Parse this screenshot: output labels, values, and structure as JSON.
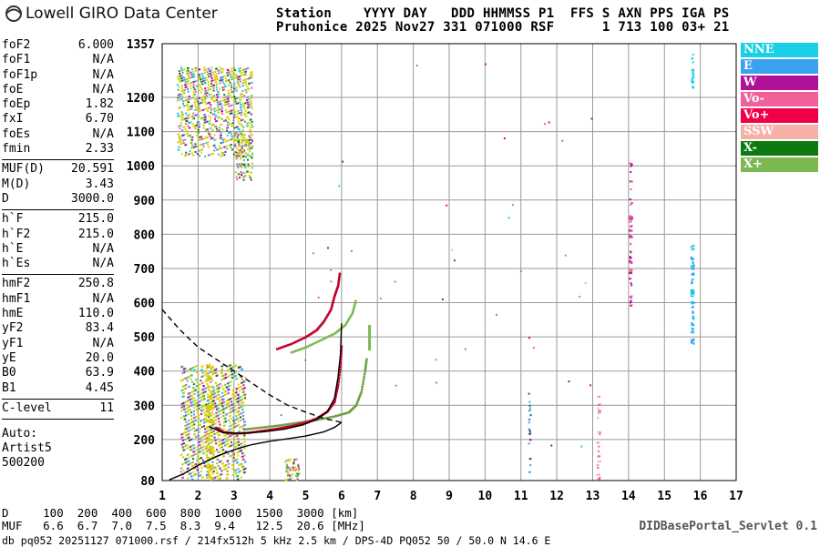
{
  "brand": {
    "name": "Lowell GIRO Data Center"
  },
  "header": {
    "line1": "Station    YYYY DAY   DDD HHMMSS P1  FFS S AXN PPS IGA PS",
    "line2": "Pruhonice 2025 Nov27 331 071000 RSF      1 713 100 03+ 21"
  },
  "params": [
    {
      "label": "foF2",
      "value": "6.000"
    },
    {
      "label": "foF1",
      "value": "N/A"
    },
    {
      "label": "foF1p",
      "value": "N/A"
    },
    {
      "label": "foE",
      "value": "N/A"
    },
    {
      "label": "foEp",
      "value": "1.82"
    },
    {
      "label": "fxI",
      "value": "6.70"
    },
    {
      "label": "foEs",
      "value": "N/A"
    },
    {
      "label": "fmin",
      "value": "2.33"
    },
    {
      "sep": true
    },
    {
      "label": "MUF(D)",
      "value": "20.591"
    },
    {
      "label": "M(D)",
      "value": "3.43"
    },
    {
      "label": "D",
      "value": "3000.0"
    },
    {
      "sep": true
    },
    {
      "label": "h`F",
      "value": "215.0"
    },
    {
      "label": "h`F2",
      "value": "215.0"
    },
    {
      "label": "h`E",
      "value": "N/A"
    },
    {
      "label": "h`Es",
      "value": "N/A"
    },
    {
      "sep": true
    },
    {
      "label": "hmF2",
      "value": "250.8"
    },
    {
      "label": "hmF1",
      "value": "N/A"
    },
    {
      "label": "hmE",
      "value": "110.0"
    },
    {
      "label": "yF2",
      "value": "83.4"
    },
    {
      "label": "yF1",
      "value": "N/A"
    },
    {
      "label": "yE",
      "value": "20.0"
    },
    {
      "label": "B0",
      "value": "63.9"
    },
    {
      "label": "B1",
      "value": "4.45"
    },
    {
      "sep": true
    },
    {
      "label": "C-level",
      "value": "11"
    },
    {
      "sep": true
    }
  ],
  "autoscaling": {
    "line1": "Auto:",
    "line2": "Artist5",
    "line3": "500200"
  },
  "legend": [
    {
      "label": "NNE",
      "color": "#1ad0e6"
    },
    {
      "label": "E",
      "color": "#3aa0f0"
    },
    {
      "label": "W",
      "color": "#b0109a"
    },
    {
      "label": "Vo-",
      "color": "#f0609a"
    },
    {
      "label": "Vo+",
      "color": "#f00048"
    },
    {
      "label": "SSW",
      "color": "#f5b0a8"
    },
    {
      "label": "X-",
      "color": "#0c7a10"
    },
    {
      "label": "X+",
      "color": "#7cb850"
    }
  ],
  "dmuf": {
    "line1": "D     100  200  400  600  800  1000  1500  3000 [km]",
    "line2": "MUF   6.6  6.7  7.0  7.5  8.3  9.4   12.5  20.6 [MHz]"
  },
  "footer": "db pq052 20251127 071000.rsf / 214fx512h 5 kHz 2.5 km / DPS-4D PQ052 50 / 50.0 N 14.6 E",
  "servlet": "DIDBasePortal_Servlet 0.1",
  "chart_data": {
    "type": "scatter",
    "title": "",
    "xlabel": "",
    "ylabel": "",
    "xlim": [
      1,
      17
    ],
    "ylim": [
      80,
      1357
    ],
    "x_ticks": [
      1,
      2,
      3,
      4,
      5,
      6,
      7,
      8,
      9,
      10,
      11,
      12,
      13,
      14,
      15,
      16,
      17
    ],
    "y_ticks": [
      80,
      200,
      300,
      400,
      500,
      600,
      700,
      800,
      900,
      1000,
      1100,
      1200,
      1357
    ],
    "grid": true,
    "ordinary_trace": {
      "name": "",
      "color": "#c0002a",
      "points": [
        [
          2.5,
          235
        ],
        [
          2.7,
          222
        ],
        [
          3.0,
          218
        ],
        [
          3.4,
          220
        ],
        [
          3.8,
          226
        ],
        [
          4.2,
          232
        ],
        [
          4.6,
          240
        ],
        [
          5.0,
          250
        ],
        [
          5.3,
          262
        ],
        [
          5.6,
          282
        ],
        [
          5.8,
          310
        ],
        [
          5.9,
          360
        ],
        [
          5.97,
          420
        ],
        [
          6.0,
          480
        ]
      ]
    },
    "extraordinary_trace": {
      "name": "",
      "color": "#6aa040",
      "points": [
        [
          3.3,
          230
        ],
        [
          3.8,
          236
        ],
        [
          4.3,
          242
        ],
        [
          4.8,
          250
        ],
        [
          5.3,
          258
        ],
        [
          5.8,
          268
        ],
        [
          6.2,
          280
        ],
        [
          6.4,
          300
        ],
        [
          6.55,
          340
        ],
        [
          6.65,
          400
        ],
        [
          6.7,
          440
        ]
      ]
    },
    "multi_hop_trace": {
      "name": "",
      "color": "#c0002a",
      "points": [
        [
          4.2,
          465
        ],
        [
          4.6,
          480
        ],
        [
          5.0,
          500
        ],
        [
          5.3,
          520
        ],
        [
          5.5,
          545
        ],
        [
          5.7,
          580
        ],
        [
          5.8,
          620
        ],
        [
          5.9,
          650
        ],
        [
          5.95,
          690
        ]
      ]
    },
    "multi_hop_x_trace": {
      "name": "",
      "color": "#7cb850",
      "points": [
        [
          4.6,
          455
        ],
        [
          5.0,
          470
        ],
        [
          5.4,
          490
        ],
        [
          5.8,
          510
        ],
        [
          6.1,
          535
        ],
        [
          6.3,
          570
        ],
        [
          6.4,
          610
        ]
      ]
    },
    "true_height_profile": {
      "name": "",
      "color": "#000000",
      "points": [
        [
          1.2,
          82
        ],
        [
          1.6,
          100
        ],
        [
          2.0,
          125
        ],
        [
          2.5,
          150
        ],
        [
          3.0,
          170
        ],
        [
          3.5,
          185
        ],
        [
          4.0,
          195
        ],
        [
          4.5,
          202
        ],
        [
          5.0,
          210
        ],
        [
          5.5,
          222
        ],
        [
          5.8,
          235
        ],
        [
          6.0,
          250
        ]
      ]
    },
    "virtual_height_curve": {
      "name": "",
      "color": "#000000",
      "points": [
        [
          2.3,
          238
        ],
        [
          2.7,
          220
        ],
        [
          3.2,
          218
        ],
        [
          3.8,
          222
        ],
        [
          4.4,
          230
        ],
        [
          4.9,
          242
        ],
        [
          5.3,
          258
        ],
        [
          5.6,
          280
        ],
        [
          5.8,
          320
        ],
        [
          5.9,
          380
        ],
        [
          5.97,
          450
        ],
        [
          6.0,
          540
        ]
      ]
    },
    "muf_curve_dashed": {
      "name": "",
      "color": "#000000",
      "points": [
        [
          1.0,
          580
        ],
        [
          1.5,
          520
        ],
        [
          2.0,
          470
        ],
        [
          2.5,
          435
        ],
        [
          3.0,
          400
        ],
        [
          3.5,
          365
        ],
        [
          4.0,
          330
        ],
        [
          4.5,
          300
        ],
        [
          5.0,
          280
        ],
        [
          5.5,
          262
        ],
        [
          6.0,
          250
        ]
      ]
    }
  }
}
